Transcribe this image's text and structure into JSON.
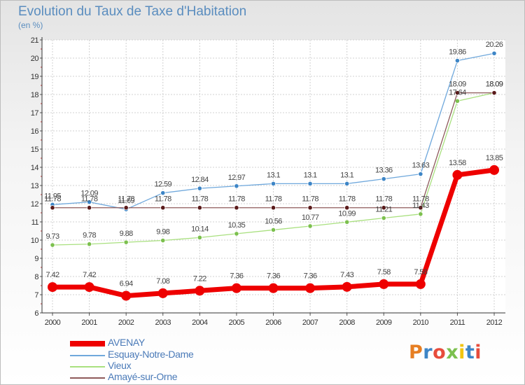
{
  "header": {
    "title": "Evolution du Taux de Taxe d'Habitation",
    "unit": "(en %)"
  },
  "logo": {
    "text": "Proxiti"
  },
  "chart_data": {
    "type": "line",
    "title": "Evolution du Taux de Taxe d'Habitation",
    "ylabel": "(en %)",
    "ylim": [
      6,
      21
    ],
    "grid": true,
    "x": [
      "2000",
      "2001",
      "2002",
      "2003",
      "2004",
      "2005",
      "2006",
      "2007",
      "2008",
      "2009",
      "2010",
      "2011",
      "2012"
    ],
    "yticks": [
      "6",
      "7",
      "8",
      "9",
      "10",
      "11",
      "12",
      "13",
      "14",
      "15",
      "16",
      "17",
      "18",
      "19",
      "20",
      "21"
    ],
    "series": [
      {
        "name": "Esquay-Notre-Dame",
        "color": "#6fa8dc",
        "marker": "#3d85c6",
        "values": [
          11.95,
          12.09,
          11.69,
          12.59,
          12.84,
          12.97,
          13.1,
          13.1,
          13.1,
          13.36,
          13.63,
          19.86,
          20.26
        ],
        "labels": [
          "11.95",
          "12.09",
          "11.69",
          "12.59",
          "12.84",
          "12.97",
          "13.1",
          "13.1",
          "13.1",
          "13.36",
          "13.63",
          "19.86",
          "20.26"
        ]
      },
      {
        "name": "Vieux",
        "color": "#a9e07f",
        "marker": "#7cc04e",
        "values": [
          9.73,
          9.78,
          9.88,
          9.98,
          10.14,
          10.35,
          10.56,
          10.77,
          10.99,
          11.21,
          11.43,
          17.64,
          18.09
        ],
        "labels": [
          "9.73",
          "9.78",
          "9.88",
          "9.98",
          "10.14",
          "10.35",
          "10.56",
          "10.77",
          "10.99",
          "11.21",
          "11.43",
          "17.64",
          "18.09"
        ]
      },
      {
        "name": "Amayé-sur-Orne",
        "color": "#8e5a5a",
        "marker": "#5a1a1a",
        "values": [
          11.78,
          11.78,
          11.78,
          11.78,
          11.78,
          11.78,
          11.78,
          11.78,
          11.78,
          11.78,
          11.78,
          18.09,
          18.09
        ],
        "labels": [
          "11.78",
          "11.78",
          "11.78",
          "11.78",
          "11.78",
          "11.78",
          "11.78",
          "11.78",
          "11.78",
          "11.78",
          "11.78",
          "18.09",
          "18.09"
        ]
      },
      {
        "name": "AVENAY",
        "color": "#ee0000",
        "marker": "#ee0000",
        "values": [
          7.42,
          7.42,
          6.94,
          7.08,
          7.22,
          7.36,
          7.36,
          7.36,
          7.43,
          7.58,
          7.58,
          13.58,
          13.85
        ],
        "labels": [
          "7.42",
          "7.42",
          "6.94",
          "7.08",
          "7.22",
          "7.36",
          "7.36",
          "7.36",
          "7.43",
          "7.58",
          "7.58",
          "13.58",
          "13.85"
        ]
      }
    ],
    "legend": {
      "placement": "bottom-left",
      "items": [
        "AVENAY",
        "Esquay-Notre-Dame",
        "Vieux",
        "Amayé-sur-Orne"
      ]
    }
  }
}
